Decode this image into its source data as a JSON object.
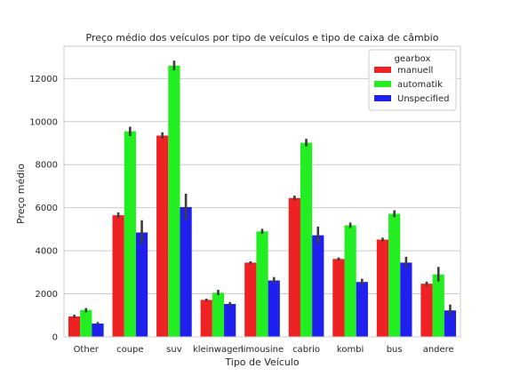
{
  "chart_data": {
    "type": "bar",
    "title": "Preço médio dos veículos por tipo de veículos e tipo de caixa de câmbio",
    "xlabel": "Tipo de Veículo",
    "ylabel": "Preço médio",
    "categories": [
      "Other",
      "coupe",
      "suv",
      "kleinwagen",
      "limousine",
      "cabrio",
      "kombi",
      "bus",
      "andere"
    ],
    "ylim": [
      0,
      13500
    ],
    "yticks": [
      0,
      2000,
      4000,
      6000,
      8000,
      10000,
      12000
    ],
    "ytick_labels": [
      "0",
      "2000",
      "4000",
      "6000",
      "8000",
      "10000",
      "12000"
    ],
    "grid": "horizontal",
    "legend": {
      "title": "gearbox",
      "placement": "top-right"
    },
    "series": [
      {
        "name": "manuell",
        "color": "#ee2222",
        "values": [
          950,
          5650,
          9350,
          1720,
          3450,
          6450,
          3620,
          4520,
          2470
        ],
        "err_low": [
          870,
          5520,
          9200,
          1660,
          3390,
          6350,
          3550,
          4440,
          2380
        ],
        "err_high": [
          1030,
          5780,
          9500,
          1780,
          3510,
          6560,
          3690,
          4610,
          2570
        ]
      },
      {
        "name": "automatik",
        "color": "#22ee22",
        "values": [
          1250,
          9550,
          12600,
          2050,
          4900,
          9020,
          5180,
          5720,
          2900
        ],
        "err_low": [
          1140,
          9330,
          12380,
          1940,
          4790,
          8850,
          5060,
          5560,
          2570
        ],
        "err_high": [
          1340,
          9760,
          12830,
          2190,
          5020,
          9200,
          5310,
          5880,
          3250
        ]
      },
      {
        "name": "Unspecified",
        "color": "#1f1fee",
        "values": [
          620,
          4850,
          6030,
          1530,
          2620,
          4720,
          2550,
          3450,
          1230
        ],
        "err_low": [
          560,
          4300,
          5450,
          1420,
          2470,
          4330,
          2400,
          3220,
          1000
        ],
        "err_high": [
          690,
          5420,
          6650,
          1620,
          2780,
          5120,
          2700,
          3720,
          1500
        ]
      }
    ],
    "colors": {
      "grid": "#cccccc",
      "frame": "#cccccc",
      "errorbar": "#3d3d3d"
    }
  }
}
